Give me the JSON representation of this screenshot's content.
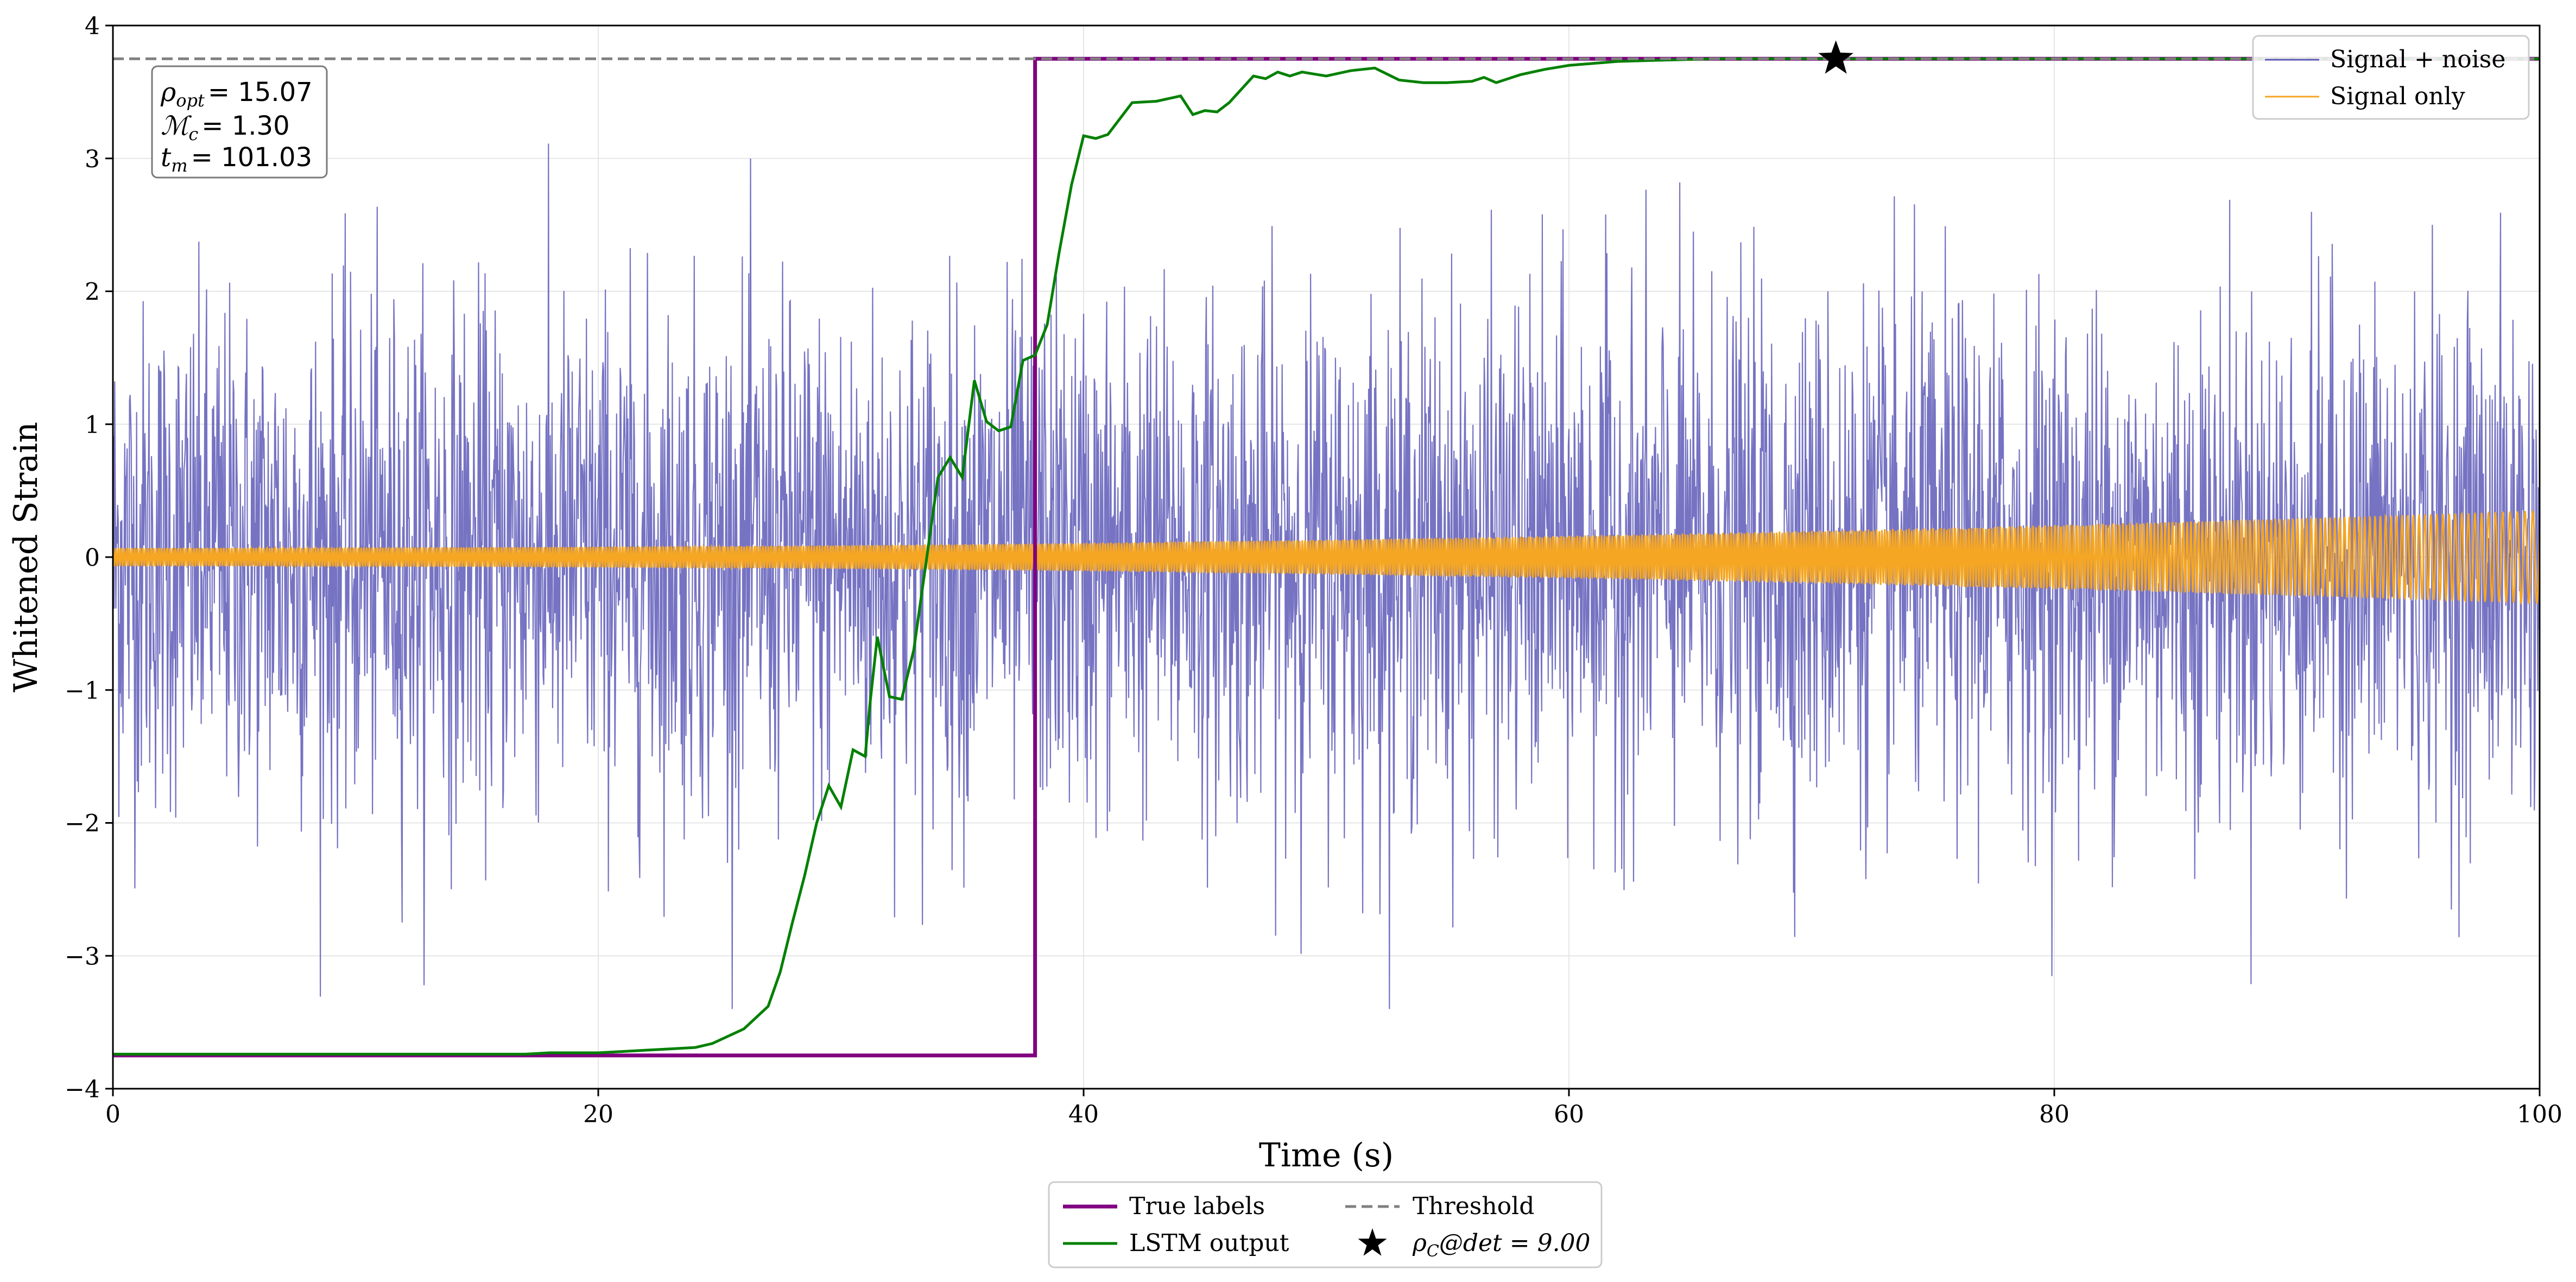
{
  "chart_data": {
    "type": "line",
    "title": "",
    "xlabel": "Time (s)",
    "ylabel": "Whitened Strain",
    "xlim": [
      0,
      100
    ],
    "ylim": [
      -4,
      4
    ],
    "grid": true,
    "xticks": [
      0,
      20,
      40,
      60,
      80,
      100
    ],
    "xtick_labels": [
      "0",
      "20",
      "40",
      "60",
      "80",
      "100"
    ],
    "yticks": [
      -4,
      -3,
      -2,
      -1,
      0,
      1,
      2,
      3,
      4
    ],
    "ytick_labels": [
      "−4",
      "−3",
      "−2",
      "−1",
      "0",
      "1",
      "2",
      "3",
      "4"
    ],
    "info_box": {
      "lines": [
        {
          "symbol": "ρ",
          "sub": "opt",
          "value": "= 15.07"
        },
        {
          "symbol": "ℳ",
          "sub": "c",
          "value": "= 1.30"
        },
        {
          "symbol": "t",
          "sub": "m",
          "value": "= 101.03"
        }
      ]
    },
    "series": [
      {
        "name": "Signal + noise",
        "kind": "noise",
        "color": "#5e5ab8",
        "description_stats": {
          "mean": 0,
          "std": 0.95,
          "range": [
            -3.4,
            3.2
          ]
        }
      },
      {
        "name": "Signal only",
        "kind": "chirp",
        "color": "#f5a623",
        "amplitude_start": 0.07,
        "amplitude_end": 0.35,
        "x_end": 100
      },
      {
        "name": "True labels",
        "kind": "step",
        "color": "#800080",
        "x": [
          0,
          38,
          38,
          100
        ],
        "y": [
          -3.75,
          -3.75,
          3.75,
          3.75
        ]
      },
      {
        "name": "LSTM output",
        "kind": "line",
        "color": "#008000",
        "x": [
          0,
          5,
          10,
          15,
          17,
          18,
          20,
          21,
          22,
          23,
          24,
          24.7,
          26,
          27,
          27.5,
          28,
          28.5,
          29,
          29.5,
          30,
          30.5,
          31,
          31.2,
          31.5,
          32,
          32.5,
          33,
          33.5,
          34,
          34.5,
          35,
          35.5,
          36,
          36.5,
          37,
          37.5,
          38,
          38.5,
          39,
          39.5,
          40,
          40.5,
          41,
          42,
          43,
          44,
          44.5,
          45,
          45.5,
          46,
          47,
          47.5,
          48,
          48.5,
          49,
          50,
          51,
          52,
          53,
          54,
          55,
          56,
          56.5,
          57,
          58,
          59,
          60,
          62,
          64,
          66,
          68,
          70,
          71,
          75,
          80,
          90,
          100
        ],
        "y": [
          -3.74,
          -3.74,
          -3.74,
          -3.74,
          -3.74,
          -3.73,
          -3.73,
          -3.72,
          -3.71,
          -3.7,
          -3.69,
          -3.66,
          -3.55,
          -3.38,
          -3.12,
          -2.75,
          -2.4,
          -2.0,
          -1.72,
          -1.88,
          -1.45,
          -1.5,
          -1.1,
          -0.6,
          -1.05,
          -1.07,
          -0.7,
          -0.05,
          0.6,
          0.75,
          0.6,
          1.33,
          1.02,
          0.95,
          0.98,
          1.48,
          1.52,
          1.75,
          2.3,
          2.8,
          3.17,
          3.15,
          3.18,
          3.42,
          3.43,
          3.47,
          3.33,
          3.36,
          3.35,
          3.42,
          3.62,
          3.6,
          3.65,
          3.62,
          3.65,
          3.62,
          3.66,
          3.68,
          3.59,
          3.57,
          3.57,
          3.58,
          3.61,
          3.57,
          3.63,
          3.67,
          3.7,
          3.73,
          3.74,
          3.75,
          3.75,
          3.75,
          3.75,
          3.75,
          3.75,
          3.75,
          3.75
        ]
      },
      {
        "name": "Threshold",
        "kind": "hline",
        "color": "#808080",
        "y": 3.75
      },
      {
        "name": "ρ_C@det = 9.00",
        "kind": "marker",
        "color": "#000000",
        "x": 71,
        "y": 3.75
      }
    ],
    "legend_upper_right": [
      {
        "label": "Signal + noise",
        "color": "#5e5ab8",
        "style": "thin-line"
      },
      {
        "label": "Signal only",
        "color": "#f5a623",
        "style": "thin-line"
      }
    ],
    "legend_bottom": [
      {
        "label": "True labels",
        "color": "#800080",
        "style": "thick-line"
      },
      {
        "label": "Threshold",
        "color": "#808080",
        "style": "dashed-line"
      },
      {
        "label": "LSTM output",
        "color": "#008000",
        "style": "line"
      },
      {
        "label_prefix": "ρ",
        "label_sub": "C",
        "label_rest": "@det = 9.00",
        "color": "#000000",
        "style": "star"
      }
    ]
  }
}
